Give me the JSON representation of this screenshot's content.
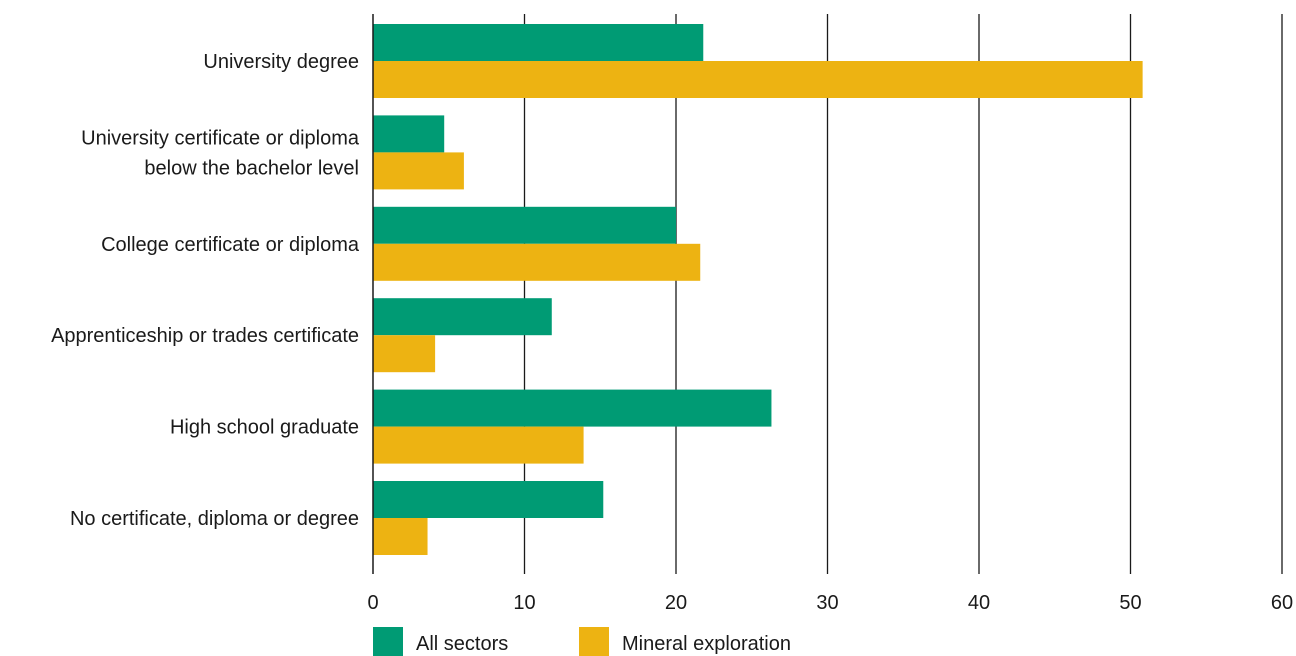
{
  "colors": {
    "all_sectors": "#009b74",
    "mineral_exploration": "#edb312",
    "gridline": "#1a1a1a",
    "text": "#1a1a1a"
  },
  "chart_data": {
    "type": "bar",
    "orientation": "horizontal",
    "title": "",
    "xlabel": "",
    "ylabel": "",
    "categories": [
      [
        "University degree"
      ],
      [
        "University certificate or diploma",
        "below the bachelor level"
      ],
      [
        "College certificate or diploma"
      ],
      [
        "Apprenticeship or trades certificate"
      ],
      [
        "High school graduate"
      ],
      [
        "No certificate, diploma or degree"
      ]
    ],
    "series": [
      {
        "name": "All sectors",
        "values": [
          21.8,
          4.7,
          20.0,
          11.8,
          26.3,
          15.2
        ]
      },
      {
        "name": "Mineral exploration",
        "values": [
          50.8,
          6.0,
          21.6,
          4.1,
          13.9,
          3.6
        ]
      }
    ],
    "xlim": [
      0,
      60
    ],
    "xticks": [
      "0",
      "10",
      "20",
      "30",
      "40",
      "50",
      "60"
    ],
    "grid": true,
    "legend_position": "bottom-center"
  }
}
